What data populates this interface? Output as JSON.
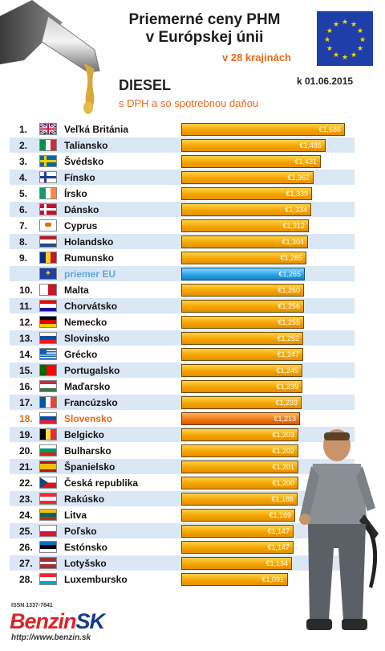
{
  "header": {
    "title_line1": "Priemerné ceny PHM",
    "title_line2": "v Európskej únii",
    "subtitle": "v 28 krajinách",
    "fuel": "DIESEL",
    "tax_note": "s DPH a so spotrebnou daňou",
    "date": "k 01.06.2015"
  },
  "footer": {
    "issn": "ISSN 1337-7841",
    "logo_part1": "Benzin",
    "logo_part2": "SK",
    "url": "http://www.benzin.sk"
  },
  "colors": {
    "bar": "#f4a500",
    "eu_bar": "#2aa4e8",
    "slovakia_bar": "#f07a12",
    "stripe": "#dce7f5",
    "eu_text": "#5aa9e0",
    "slovakia_text": "#e8691a",
    "logo_red": "#d8262b",
    "logo_blue": "#173a8f"
  },
  "chart_data": {
    "type": "bar",
    "orientation": "horizontal",
    "currency": "€",
    "xlim": [
      0,
      1.7
    ],
    "rows": [
      {
        "rank": "1.",
        "country": "Veľká Británia",
        "value": "€1,686",
        "v": 1.686,
        "flag": "gb"
      },
      {
        "rank": "2.",
        "country": "Taliansko",
        "value": "€1,485",
        "v": 1.485,
        "flag": "it"
      },
      {
        "rank": "3.",
        "country": "Švédsko",
        "value": "€1,431",
        "v": 1.431,
        "flag": "se"
      },
      {
        "rank": "4.",
        "country": "Fínsko",
        "value": "€1,362",
        "v": 1.362,
        "flag": "fi"
      },
      {
        "rank": "5.",
        "country": "Írsko",
        "value": "€1,339",
        "v": 1.339,
        "flag": "ie"
      },
      {
        "rank": "6.",
        "country": "Dánsko",
        "value": "€1,334",
        "v": 1.334,
        "flag": "dk"
      },
      {
        "rank": "7.",
        "country": "Cyprus",
        "value": "€1,312",
        "v": 1.312,
        "flag": "cy"
      },
      {
        "rank": "8.",
        "country": "Holandsko",
        "value": "€1,304",
        "v": 1.304,
        "flag": "nl"
      },
      {
        "rank": "9.",
        "country": "Rumunsko",
        "value": "€1,285",
        "v": 1.285,
        "flag": "ro"
      },
      {
        "rank": "",
        "country": "priemer EU",
        "value": "€1,265",
        "v": 1.265,
        "flag": "eu",
        "kind": "eu"
      },
      {
        "rank": "10.",
        "country": "Malta",
        "value": "€1,260",
        "v": 1.26,
        "flag": "mt"
      },
      {
        "rank": "11.",
        "country": "Chorvátsko",
        "value": "€1,256",
        "v": 1.256,
        "flag": "hr"
      },
      {
        "rank": "12.",
        "country": "Nemecko",
        "value": "€1,255",
        "v": 1.255,
        "flag": "de"
      },
      {
        "rank": "13.",
        "country": "Slovinsko",
        "value": "€1,252",
        "v": 1.252,
        "flag": "si"
      },
      {
        "rank": "14.",
        "country": "Grécko",
        "value": "€1,247",
        "v": 1.247,
        "flag": "gr"
      },
      {
        "rank": "15.",
        "country": "Portugalsko",
        "value": "€1,245",
        "v": 1.245,
        "flag": "pt"
      },
      {
        "rank": "16.",
        "country": "Maďarsko",
        "value": "€1,239",
        "v": 1.239,
        "flag": "hu"
      },
      {
        "rank": "17.",
        "country": "Francúzsko",
        "value": "€1,233",
        "v": 1.233,
        "flag": "fr"
      },
      {
        "rank": "18.",
        "country": "Slovensko",
        "value": "€1,213",
        "v": 1.213,
        "flag": "sk",
        "kind": "sk"
      },
      {
        "rank": "19.",
        "country": "Belgicko",
        "value": "€1,203",
        "v": 1.203,
        "flag": "be"
      },
      {
        "rank": "20.",
        "country": "Bulharsko",
        "value": "€1,202",
        "v": 1.202,
        "flag": "bg"
      },
      {
        "rank": "21.",
        "country": "Španielsko",
        "value": "€1,201",
        "v": 1.201,
        "flag": "es"
      },
      {
        "rank": "22.",
        "country": "Česká republika",
        "value": "€1,200",
        "v": 1.2,
        "flag": "cz"
      },
      {
        "rank": "23.",
        "country": "Rakúsko",
        "value": "€1,188",
        "v": 1.188,
        "flag": "at"
      },
      {
        "rank": "24.",
        "country": "Litva",
        "value": "€1,169",
        "v": 1.169,
        "flag": "lt"
      },
      {
        "rank": "25.",
        "country": "Poľsko",
        "value": "€1,147",
        "v": 1.147,
        "flag": "pl"
      },
      {
        "rank": "26.",
        "country": "Estónsko",
        "value": "€1,147",
        "v": 1.147,
        "flag": "ee"
      },
      {
        "rank": "27.",
        "country": "Lotyšsko",
        "value": "€1,134",
        "v": 1.134,
        "flag": "lv"
      },
      {
        "rank": "28.",
        "country": "Luxembursko",
        "value": "€1,091",
        "v": 1.091,
        "flag": "lu"
      }
    ]
  }
}
